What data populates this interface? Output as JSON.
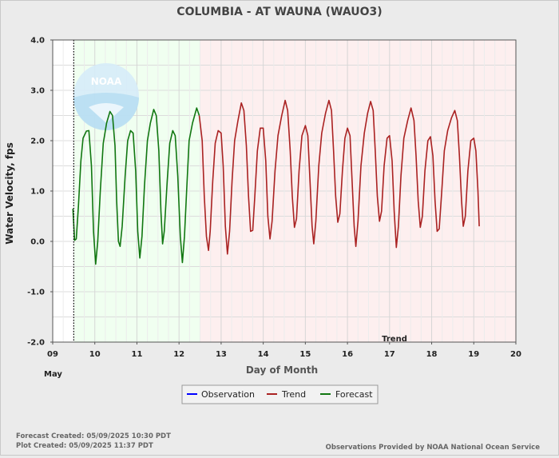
{
  "chart_data": {
    "type": "line",
    "title": "COLUMBIA - AT WAUNA  (WAUO3)",
    "xlabel": "Day of Month",
    "ylabel": "Water Velocity, fps",
    "month_label": "May",
    "xlim": [
      9,
      20
    ],
    "ylim": [
      -2.0,
      4.0
    ],
    "x_ticks": [
      "09",
      "10",
      "11",
      "12",
      "13",
      "14",
      "15",
      "16",
      "17",
      "18",
      "19",
      "20"
    ],
    "y_ticks": [
      "-2.0",
      "-1.0",
      "0.0",
      "1.0",
      "2.0",
      "3.0",
      "4.0"
    ],
    "grid": true,
    "now_line_x": 9.5,
    "forecast_region": [
      9.5,
      12.5
    ],
    "trend_region": [
      12.5,
      20
    ],
    "region_label": "Trend",
    "colors": {
      "observation": "#0000ff",
      "trend": "#aa2222",
      "forecast": "#117711",
      "forecast_region": "#f0fff0",
      "trend_region": "#fdefef",
      "grid": "#dcdcdc"
    },
    "series": [
      {
        "name": "Forecast",
        "points": [
          [
            9.48,
            0.65
          ],
          [
            9.52,
            0.02
          ],
          [
            9.56,
            0.05
          ],
          [
            9.61,
            0.7
          ],
          [
            9.67,
            1.6
          ],
          [
            9.72,
            2.05
          ],
          [
            9.8,
            2.19
          ],
          [
            9.86,
            2.2
          ],
          [
            9.92,
            1.5
          ],
          [
            9.97,
            0.2
          ],
          [
            10.02,
            -0.45
          ],
          [
            10.07,
            0.0
          ],
          [
            10.13,
            1.0
          ],
          [
            10.2,
            1.95
          ],
          [
            10.28,
            2.35
          ],
          [
            10.36,
            2.58
          ],
          [
            10.42,
            2.5
          ],
          [
            10.48,
            1.9
          ],
          [
            10.52,
            0.8
          ],
          [
            10.56,
            0.0
          ],
          [
            10.6,
            -0.1
          ],
          [
            10.65,
            0.3
          ],
          [
            10.72,
            1.3
          ],
          [
            10.78,
            2.0
          ],
          [
            10.85,
            2.2
          ],
          [
            10.91,
            2.15
          ],
          [
            10.97,
            1.4
          ],
          [
            11.02,
            0.2
          ],
          [
            11.07,
            -0.33
          ],
          [
            11.12,
            0.1
          ],
          [
            11.18,
            1.1
          ],
          [
            11.25,
            2.0
          ],
          [
            11.32,
            2.35
          ],
          [
            11.4,
            2.62
          ],
          [
            11.46,
            2.5
          ],
          [
            11.52,
            1.8
          ],
          [
            11.57,
            0.6
          ],
          [
            11.61,
            -0.05
          ],
          [
            11.65,
            0.2
          ],
          [
            11.72,
            1.2
          ],
          [
            11.78,
            1.95
          ],
          [
            11.85,
            2.2
          ],
          [
            11.91,
            2.1
          ],
          [
            11.97,
            1.3
          ],
          [
            12.03,
            0.1
          ],
          [
            12.08,
            -0.42
          ],
          [
            12.13,
            0.1
          ],
          [
            12.18,
            1.0
          ],
          [
            12.24,
            2.0
          ],
          [
            12.32,
            2.35
          ],
          [
            12.42,
            2.65
          ],
          [
            12.48,
            2.5
          ]
        ]
      },
      {
        "name": "Trend",
        "points": [
          [
            12.48,
            2.5
          ],
          [
            12.55,
            2.0
          ],
          [
            12.6,
            0.9
          ],
          [
            12.65,
            0.1
          ],
          [
            12.7,
            -0.18
          ],
          [
            12.74,
            0.2
          ],
          [
            12.8,
            1.2
          ],
          [
            12.86,
            1.95
          ],
          [
            12.93,
            2.2
          ],
          [
            13.0,
            2.15
          ],
          [
            13.05,
            1.5
          ],
          [
            13.1,
            0.3
          ],
          [
            13.15,
            -0.25
          ],
          [
            13.2,
            0.2
          ],
          [
            13.26,
            1.2
          ],
          [
            13.32,
            2.0
          ],
          [
            13.4,
            2.4
          ],
          [
            13.48,
            2.75
          ],
          [
            13.54,
            2.6
          ],
          [
            13.6,
            1.9
          ],
          [
            13.65,
            0.9
          ],
          [
            13.7,
            0.2
          ],
          [
            13.75,
            0.22
          ],
          [
            13.8,
            0.9
          ],
          [
            13.86,
            1.8
          ],
          [
            13.93,
            2.25
          ],
          [
            14.0,
            2.25
          ],
          [
            14.06,
            1.6
          ],
          [
            14.11,
            0.5
          ],
          [
            14.16,
            0.05
          ],
          [
            14.21,
            0.4
          ],
          [
            14.28,
            1.4
          ],
          [
            14.35,
            2.1
          ],
          [
            14.44,
            2.5
          ],
          [
            14.52,
            2.8
          ],
          [
            14.58,
            2.6
          ],
          [
            14.64,
            1.8
          ],
          [
            14.69,
            0.9
          ],
          [
            14.74,
            0.28
          ],
          [
            14.79,
            0.45
          ],
          [
            14.85,
            1.4
          ],
          [
            14.92,
            2.1
          ],
          [
            15.0,
            2.3
          ],
          [
            15.06,
            2.1
          ],
          [
            15.11,
            1.2
          ],
          [
            15.16,
            0.3
          ],
          [
            15.2,
            -0.05
          ],
          [
            15.25,
            0.4
          ],
          [
            15.32,
            1.5
          ],
          [
            15.39,
            2.15
          ],
          [
            15.48,
            2.55
          ],
          [
            15.56,
            2.8
          ],
          [
            15.62,
            2.6
          ],
          [
            15.67,
            1.8
          ],
          [
            15.72,
            0.9
          ],
          [
            15.77,
            0.38
          ],
          [
            15.82,
            0.55
          ],
          [
            15.88,
            1.4
          ],
          [
            15.94,
            2.05
          ],
          [
            16.0,
            2.25
          ],
          [
            16.06,
            2.1
          ],
          [
            16.11,
            1.2
          ],
          [
            16.16,
            0.3
          ],
          [
            16.2,
            -0.1
          ],
          [
            16.25,
            0.4
          ],
          [
            16.32,
            1.5
          ],
          [
            16.4,
            2.15
          ],
          [
            16.48,
            2.55
          ],
          [
            16.55,
            2.78
          ],
          [
            16.61,
            2.6
          ],
          [
            16.66,
            1.8
          ],
          [
            16.71,
            0.9
          ],
          [
            16.76,
            0.4
          ],
          [
            16.81,
            0.6
          ],
          [
            16.87,
            1.5
          ],
          [
            16.94,
            2.05
          ],
          [
            17.0,
            2.1
          ],
          [
            17.06,
            1.6
          ],
          [
            17.11,
            0.6
          ],
          [
            17.16,
            -0.12
          ],
          [
            17.21,
            0.3
          ],
          [
            17.27,
            1.3
          ],
          [
            17.34,
            2.05
          ],
          [
            17.43,
            2.4
          ],
          [
            17.51,
            2.65
          ],
          [
            17.58,
            2.4
          ],
          [
            17.63,
            1.7
          ],
          [
            17.68,
            0.8
          ],
          [
            17.73,
            0.28
          ],
          [
            17.78,
            0.5
          ],
          [
            17.84,
            1.4
          ],
          [
            17.91,
            2.0
          ],
          [
            17.97,
            2.08
          ],
          [
            18.03,
            1.7
          ],
          [
            18.08,
            0.8
          ],
          [
            18.13,
            0.2
          ],
          [
            18.18,
            0.25
          ],
          [
            18.24,
            1.0
          ],
          [
            18.3,
            1.8
          ],
          [
            18.38,
            2.2
          ],
          [
            18.47,
            2.45
          ],
          [
            18.55,
            2.6
          ],
          [
            18.61,
            2.4
          ],
          [
            18.66,
            1.7
          ],
          [
            18.71,
            0.8
          ],
          [
            18.75,
            0.3
          ],
          [
            18.8,
            0.5
          ],
          [
            18.86,
            1.4
          ],
          [
            18.93,
            2.0
          ],
          [
            19.0,
            2.05
          ],
          [
            19.05,
            1.8
          ],
          [
            19.1,
            1.0
          ],
          [
            19.13,
            0.3
          ]
        ]
      }
    ],
    "legend": {
      "placement": "bottom-center",
      "entries": [
        {
          "label": "Observation",
          "color": "#0000ff"
        },
        {
          "label": "Trend",
          "color": "#aa2222"
        },
        {
          "label": "Forecast",
          "color": "#117711"
        }
      ]
    },
    "watermark": "NOAA"
  },
  "footer": {
    "forecast_created": "Forecast Created: 05/09/2025 10:30 PDT",
    "plot_created": "Plot Created: 05/09/2025 11:37 PDT",
    "credit": "Observations Provided by NOAA National Ocean Service"
  }
}
